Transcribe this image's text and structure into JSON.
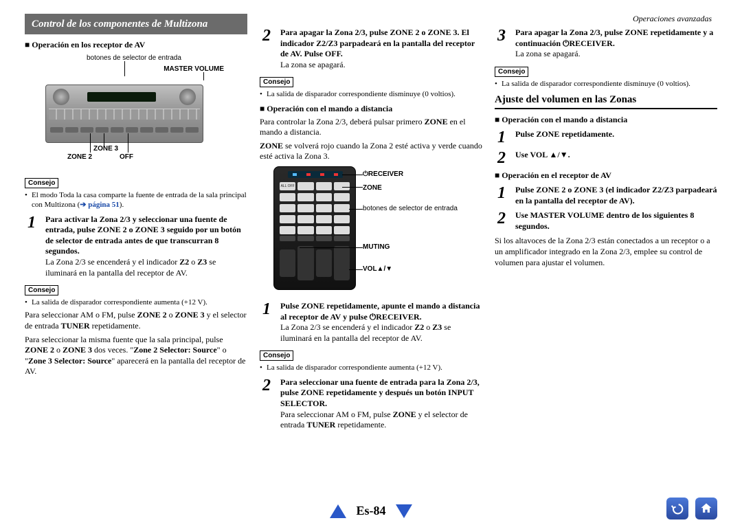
{
  "page_header": "Operaciones avanzadas",
  "page_number": "Es-84",
  "section_title": "Control de los componentes de Multizona",
  "col1": {
    "h_av": "Operación en los receptor de AV",
    "fig_top": "botones de selector de entrada",
    "fig_mv": "MASTER VOLUME",
    "fig_z3": "ZONE 3",
    "fig_z2": "ZONE 2",
    "fig_off": "OFF",
    "tip": "Consejo",
    "tip1_text_a": "El modo Toda la casa comparte la fuente de entrada de la sala principal con Multizona (",
    "tip1_link": "➔ página 51",
    "tip1_text_b": ").",
    "s1_bold": "Para activar la Zona 2/3 y seleccionar una fuente de entrada, pulse ZONE 2 o ZONE 3 seguido por un botón de selector de entrada antes de que transcurran 8 segundos.",
    "s1_p": "La Zona 2/3 se encenderá y el indicador <b>Z2</b> o <b>Z3</b> se iluminará en la pantalla del receptor de AV.",
    "tip2_text": "La salida de disparador correspondiente aumenta (+12 V).",
    "p2": "Para seleccionar AM o FM, pulse <b>ZONE 2</b> o <b>ZONE 3</b> y el selector de entrada <b>TUNER</b> repetidamente.",
    "p3": "Para seleccionar la misma fuente que la sala principal, pulse <b>ZONE 2</b> o <b>ZONE 3</b> dos veces. \"<b>Zone 2 Selector: Source</b>\" o \"<b>Zone 3 Selector: Source</b>\" aparecerá en la pantalla del receptor de AV."
  },
  "col2": {
    "s2_bold": "Para apagar la Zona 2/3, pulse ZONE 2 o ZONE 3. El indicador Z2/Z3 parpadeará en la pantalla del receptor de AV. Pulse OFF.",
    "s2_p": "La zona se apagará.",
    "tip": "Consejo",
    "tip_text": "La salida de disparador correspondiente disminuye (0 voltios).",
    "h_remote": "Operación con el mando a distancia",
    "p_remote": "Para controlar la Zona 2/3, deberá pulsar primero <b>ZONE</b> en el mando a distancia.",
    "p_remote2": "<b>ZONE</b> se volverá rojo cuando la Zona 2 esté activa y verde cuando esté activa la Zona 3.",
    "r_lbl_receiver": "⏻RECEIVER",
    "r_lbl_zone": "ZONE",
    "r_lbl_sel": "botones de selector de entrada",
    "r_lbl_muting": "MUTING",
    "r_lbl_vol": "VOL▲/▼",
    "s1_bold": "Pulse ZONE repetidamente, apunte el mando a distancia al receptor de AV y pulse ⏻RECEIVER.",
    "s1_p": "La Zona 2/3 se encenderá y el indicador <b>Z2</b> o <b>Z3</b> se iluminará en la pantalla del receptor de AV.",
    "tip2_text": "La salida de disparador correspondiente aumenta (+12 V).",
    "s2b_bold": "Para seleccionar una fuente de entrada para la Zona 2/3, pulse ZONE repetidamente y después un botón INPUT SELECTOR.",
    "s2b_p": "Para seleccionar AM o FM, pulse <b>ZONE</b> y el selector de entrada <b>TUNER</b> repetidamente."
  },
  "col3": {
    "s3_bold": "Para apagar la Zona 2/3, pulse ZONE repetidamente y a continuación ⏻RECEIVER.",
    "s3_p": "La zona se apagará.",
    "tip": "Consejo",
    "tip_text": "La salida de disparador correspondiente disminuye (0 voltios).",
    "h2": "Ajuste del volumen en las Zonas",
    "h_remote": "Operación con el mando a distancia",
    "r1": "Pulse ZONE repetidamente.",
    "r2": "Use VOL ▲/▼.",
    "h_av": "Operación en el receptor de AV",
    "a1": "Pulse ZONE 2 o ZONE 3 (el indicador Z2/Z3 parpadeará en la pantalla del receptor de AV).",
    "a2": "Use MASTER VOLUME dentro de los siguientes 8 segundos.",
    "p_final": "Si los altavoces de la Zona 2/3 están conectados a un receptor o a un amplificador integrado en la Zona 2/3, emplee su control de volumen para ajustar el volumen."
  },
  "colors": {
    "section_bg": "#6b6b6b",
    "link": "#1a4aa8",
    "footer_blue": "#2a58c8"
  }
}
